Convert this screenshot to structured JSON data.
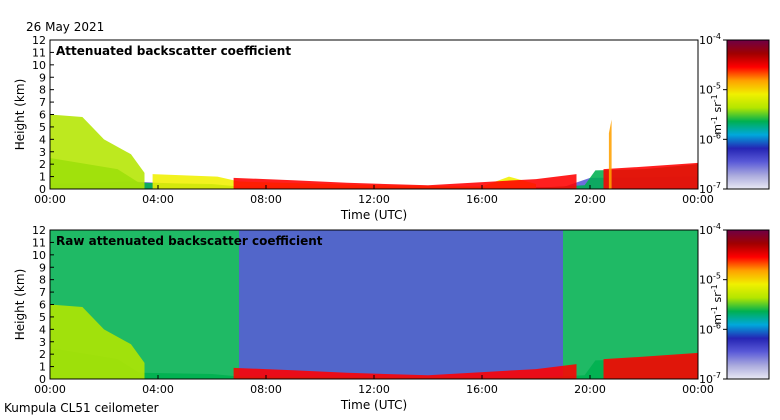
{
  "date": "26 May 2021",
  "footer": "Kumpula CL51 ceilometer",
  "colors": {
    "cmap": [
      "#e9e9f4",
      "#aaaadd",
      "#5a5ad8",
      "#2525b4",
      "#00a8dc",
      "#00b050",
      "#b4e600",
      "#f0f000",
      "#ffa000",
      "#ff0000",
      "#a00000",
      "#6e0046"
    ],
    "background": "#ffffff"
  },
  "chart_data": [
    {
      "type": "heatmap",
      "title": "Attenuated backscatter coefficient",
      "xlabel": "Time (UTC)",
      "ylabel": "Height (km)",
      "xlim": [
        0,
        24
      ],
      "ylim": [
        0,
        12
      ],
      "x_ticks": [
        "00:00",
        "04:00",
        "08:00",
        "12:00",
        "16:00",
        "20:00",
        "00:00"
      ],
      "y_ticks": [
        "0",
        "1",
        "2",
        "3",
        "4",
        "5",
        "6",
        "7",
        "8",
        "9",
        "10",
        "11",
        "12"
      ],
      "colorbar": {
        "label_base": "m",
        "label_exp1": "-1",
        "label_mid": " sr",
        "label_exp2": "-1",
        "scale": "log",
        "range": [
          1e-07,
          0.0001
        ],
        "tick_base": "10",
        "tick_exps": [
          "-7",
          "-6",
          "-5",
          "-4"
        ]
      },
      "layers": [
        {
          "name": "noise floor",
          "level": 0.18,
          "points": [
            [
              0,
              0.4
            ],
            [
              3,
              0.6
            ],
            [
              7,
              0.2
            ],
            [
              19,
              0.15
            ],
            [
              20,
              0.9
            ],
            [
              24,
              1.0
            ]
          ]
        },
        {
          "name": "boundary layer",
          "level": 0.45,
          "points": [
            [
              0,
              2.5
            ],
            [
              2.5,
              1.6
            ],
            [
              3.3,
              0.5
            ],
            [
              6,
              0.4
            ],
            [
              7,
              0.2
            ],
            [
              18,
              0.1
            ],
            [
              19.8,
              0.3
            ],
            [
              20.2,
              1.5
            ],
            [
              22,
              1.6
            ],
            [
              24,
              2.0
            ]
          ]
        },
        {
          "name": "morning cloud",
          "level": 0.58,
          "points": [
            [
              0,
              6.0
            ],
            [
              1.2,
              5.8
            ],
            [
              2,
              4.0
            ],
            [
              3,
              2.8
            ],
            [
              3.5,
              1.3
            ]
          ]
        },
        {
          "name": "residual layer",
          "level": 0.66,
          "points": [
            [
              3.8,
              1.2
            ],
            [
              5,
              1.1
            ],
            [
              6.2,
              1.0
            ],
            [
              7,
              0.6
            ],
            [
              12,
              0.3
            ],
            [
              16,
              0.2
            ],
            [
              17,
              1.0
            ],
            [
              18,
              0.4
            ]
          ]
        },
        {
          "name": "surface layer",
          "level": 0.85,
          "points": [
            [
              6.8,
              0.9
            ],
            [
              9,
              0.7
            ],
            [
              11,
              0.5
            ],
            [
              14,
              0.3
            ],
            [
              18,
              0.8
            ],
            [
              19.5,
              1.2
            ]
          ]
        },
        {
          "name": "evening top",
          "level": 0.82,
          "points": [
            [
              20.5,
              1.6
            ],
            [
              22,
              1.8
            ],
            [
              24,
              2.1
            ]
          ]
        },
        {
          "name": "elevated cloud",
          "level": 0.72,
          "points": [
            [
              20.7,
              4.5
            ],
            [
              20.8,
              5.6
            ]
          ]
        }
      ]
    },
    {
      "type": "heatmap",
      "title": "Raw attenuated backscatter coefficient",
      "xlabel": "Time (UTC)",
      "ylabel": "Height (km)",
      "xlim": [
        0,
        24
      ],
      "ylim": [
        0,
        12
      ],
      "x_ticks": [
        "00:00",
        "04:00",
        "08:00",
        "12:00",
        "16:00",
        "20:00",
        "00:00"
      ],
      "y_ticks": [
        "0",
        "1",
        "2",
        "3",
        "4",
        "5",
        "6",
        "7",
        "8",
        "9",
        "10",
        "11",
        "12"
      ],
      "colorbar": {
        "label_base": "m",
        "label_exp1": "-1",
        "label_mid": " sr",
        "label_exp2": "-1",
        "scale": "log",
        "range": [
          1e-07,
          0.0001
        ],
        "tick_base": "10",
        "tick_exps": [
          "-7",
          "-6",
          "-5",
          "-4"
        ]
      },
      "layers": [
        {
          "name": "noise field",
          "level": 0.48,
          "points": [
            [
              0,
              12
            ],
            [
              7,
              12
            ],
            [
              24,
              12
            ]
          ]
        },
        {
          "name": "clear daytime noise",
          "level": 0.22,
          "points": [
            [
              7,
              12
            ],
            [
              19,
              12
            ]
          ]
        },
        {
          "name": "boundary layer",
          "level": 0.45,
          "points": [
            [
              0,
              2.5
            ],
            [
              2.5,
              1.6
            ],
            [
              3.3,
              0.5
            ],
            [
              6,
              0.4
            ],
            [
              7,
              0.2
            ],
            [
              18,
              0.1
            ],
            [
              19.8,
              0.3
            ],
            [
              20.2,
              1.5
            ],
            [
              22,
              1.6
            ],
            [
              24,
              2.0
            ]
          ]
        },
        {
          "name": "morning cloud",
          "level": 0.58,
          "points": [
            [
              0,
              6.0
            ],
            [
              1.2,
              5.8
            ],
            [
              2,
              4.0
            ],
            [
              3,
              2.8
            ],
            [
              3.5,
              1.3
            ]
          ]
        },
        {
          "name": "surface layer",
          "level": 0.85,
          "points": [
            [
              6.8,
              0.9
            ],
            [
              9,
              0.7
            ],
            [
              11,
              0.5
            ],
            [
              14,
              0.3
            ],
            [
              18,
              0.8
            ],
            [
              19.5,
              1.2
            ]
          ]
        },
        {
          "name": "evening top",
          "level": 0.82,
          "points": [
            [
              20.5,
              1.6
            ],
            [
              22,
              1.8
            ],
            [
              24,
              2.1
            ]
          ]
        }
      ]
    }
  ]
}
